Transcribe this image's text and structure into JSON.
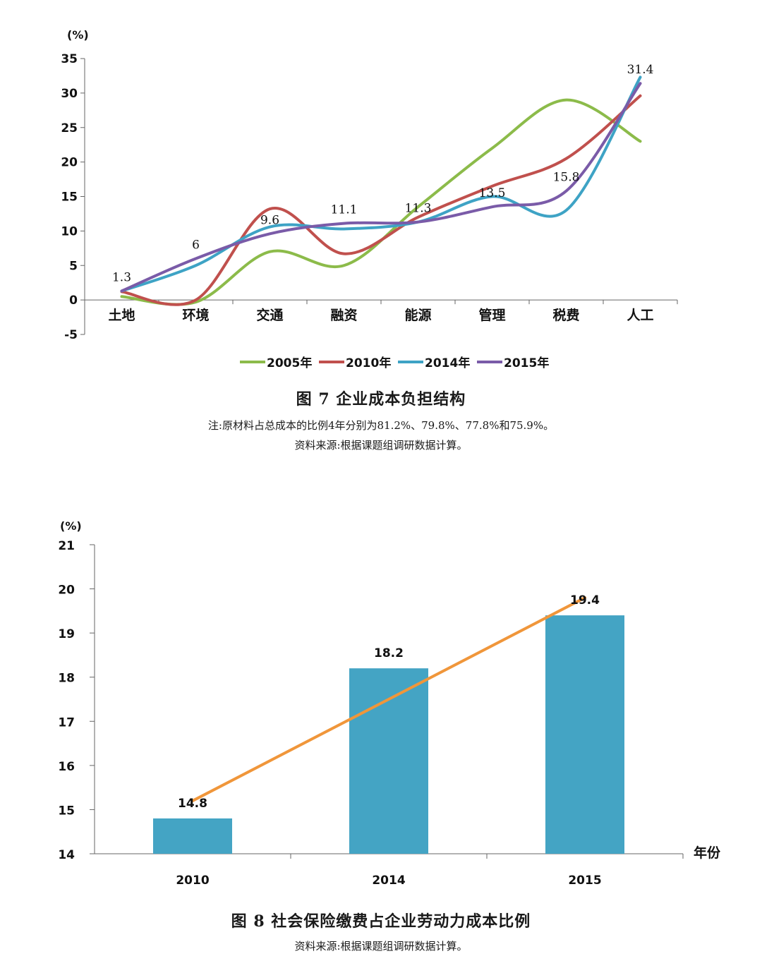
{
  "figures": [
    {
      "title": "图 7  企业成本负担结构",
      "notes": [
        "注:原材料占总成本的比例4年分别为81.2%、79.8%、77.8%和75.9%。",
        "资料来源:根据课题组调研数据计算。"
      ]
    },
    {
      "title": "图 8  社会保险缴费占企业劳动力成本比例",
      "notes": [
        "资料来源:根据课题组调研数据计算。"
      ]
    }
  ],
  "chart_data": [
    {
      "type": "line",
      "title": "",
      "ylabel": "(%)",
      "xlabel": "",
      "ylim": [
        -5,
        35
      ],
      "yticks": [
        -5,
        0,
        5,
        10,
        15,
        20,
        25,
        30,
        35
      ],
      "categories": [
        "土地",
        "环境",
        "交通",
        "融资",
        "能源",
        "管理",
        "税费",
        "人工"
      ],
      "legend_position": "bottom",
      "series": [
        {
          "name": "2005年",
          "color": "#8cbb4a",
          "values": [
            0.5,
            -0.3,
            7.0,
            5.0,
            13.5,
            22.0,
            29.0,
            23.0
          ]
        },
        {
          "name": "2010年",
          "color": "#c0504d",
          "values": [
            1.2,
            0.0,
            13.2,
            6.7,
            12.0,
            16.5,
            20.5,
            29.6
          ]
        },
        {
          "name": "2014年",
          "color": "#3ea3c5",
          "values": [
            1.3,
            5.0,
            10.6,
            10.3,
            11.3,
            15.0,
            13.0,
            32.3
          ]
        },
        {
          "name": "2015年",
          "color": "#7a5ba8",
          "values": [
            1.3,
            6.0,
            9.6,
            11.1,
            11.3,
            13.5,
            15.8,
            31.4
          ]
        }
      ],
      "data_labels": [
        {
          "category": "土地",
          "text": "1.3",
          "value": 1.3
        },
        {
          "category": "环境",
          "text": "6",
          "value": 6
        },
        {
          "category": "交通",
          "text": "9.6",
          "value": 9.6
        },
        {
          "category": "融资",
          "text": "11.1",
          "value": 11.1
        },
        {
          "category": "能源",
          "text": "11.3",
          "value": 11.3
        },
        {
          "category": "管理",
          "text": "13.5",
          "value": 13.5
        },
        {
          "category": "税费",
          "text": "15.8",
          "value": 15.8
        },
        {
          "category": "人工",
          "text": "31.4",
          "value": 31.4
        }
      ]
    },
    {
      "type": "bar",
      "title": "",
      "ylabel": "(%)",
      "xlabel": "年份",
      "ylim": [
        14,
        21
      ],
      "yticks": [
        14,
        15,
        16,
        17,
        18,
        19,
        20,
        21
      ],
      "categories": [
        "2010",
        "2014",
        "2015"
      ],
      "bar_color": "#44a4c4",
      "values": [
        14.8,
        18.2,
        19.4
      ],
      "value_labels": [
        "14.8",
        "18.2",
        "19.4"
      ],
      "trend_line": {
        "color": "#f0963a",
        "values": [
          15.2,
          17.5,
          19.8
        ]
      }
    }
  ]
}
